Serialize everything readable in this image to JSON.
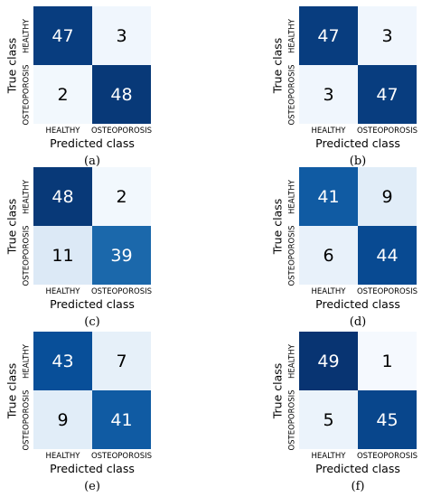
{
  "chart_data": [
    {
      "type": "heatmap",
      "caption": "(a)",
      "xlabel": "Predicted class",
      "ylabel": "True class",
      "x_categories": [
        "HEALTHY",
        "OSTEOPOROSIS"
      ],
      "y_categories": [
        "HEALTHY",
        "OSTEOPOROSIS"
      ],
      "values": [
        [
          47,
          3
        ],
        [
          2,
          48
        ]
      ],
      "colormap": "Blues",
      "vmin": 0,
      "vmax": 50
    },
    {
      "type": "heatmap",
      "caption": "(b)",
      "xlabel": "Predicted class",
      "ylabel": "True class",
      "x_categories": [
        "HEALTHY",
        "OSTEOPOROSIS"
      ],
      "y_categories": [
        "HEALTHY",
        "OSTEOPOROSIS"
      ],
      "values": [
        [
          47,
          3
        ],
        [
          3,
          47
        ]
      ],
      "colormap": "Blues",
      "vmin": 0,
      "vmax": 50
    },
    {
      "type": "heatmap",
      "caption": "(c)",
      "xlabel": "Predicted class",
      "ylabel": "True class",
      "x_categories": [
        "HEALTHY",
        "OSTEOPOROSIS"
      ],
      "y_categories": [
        "HEALTHY",
        "OSTEOPOROSIS"
      ],
      "values": [
        [
          48,
          2
        ],
        [
          11,
          39
        ]
      ],
      "colormap": "Blues",
      "vmin": 0,
      "vmax": 50
    },
    {
      "type": "heatmap",
      "caption": "(d)",
      "xlabel": "Predicted class",
      "ylabel": "True class",
      "x_categories": [
        "HEALTHY",
        "OSTEOPOROSIS"
      ],
      "y_categories": [
        "HEALTHY",
        "OSTEOPOROSIS"
      ],
      "values": [
        [
          41,
          9
        ],
        [
          6,
          44
        ]
      ],
      "colormap": "Blues",
      "vmin": 0,
      "vmax": 50
    },
    {
      "type": "heatmap",
      "caption": "(e)",
      "xlabel": "Predicted class",
      "ylabel": "True class",
      "x_categories": [
        "HEALTHY",
        "OSTEOPOROSIS"
      ],
      "y_categories": [
        "HEALTHY",
        "OSTEOPOROSIS"
      ],
      "values": [
        [
          43,
          7
        ],
        [
          9,
          41
        ]
      ],
      "colormap": "Blues",
      "vmin": 0,
      "vmax": 50
    },
    {
      "type": "heatmap",
      "caption": "(f)",
      "xlabel": "Predicted class",
      "ylabel": "True class",
      "x_categories": [
        "HEALTHY",
        "OSTEOPOROSIS"
      ],
      "y_categories": [
        "HEALTHY",
        "OSTEOPOROSIS"
      ],
      "values": [
        [
          49,
          1
        ],
        [
          5,
          45
        ]
      ],
      "colormap": "Blues",
      "vmin": 0,
      "vmax": 50
    }
  ]
}
